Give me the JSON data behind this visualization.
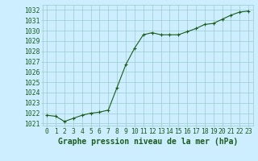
{
  "x": [
    0,
    1,
    2,
    3,
    4,
    5,
    6,
    7,
    8,
    9,
    10,
    11,
    12,
    13,
    14,
    15,
    16,
    17,
    18,
    19,
    20,
    21,
    22,
    23
  ],
  "y": [
    1021.8,
    1021.7,
    1021.2,
    1021.5,
    1021.8,
    1022.0,
    1022.1,
    1022.3,
    1024.5,
    1026.7,
    1028.3,
    1029.6,
    1029.8,
    1029.6,
    1029.6,
    1029.6,
    1029.9,
    1030.2,
    1030.6,
    1030.7,
    1031.1,
    1031.5,
    1031.8,
    1031.9
  ],
  "xlim": [
    -0.5,
    23.5
  ],
  "ylim": [
    1020.8,
    1032.5
  ],
  "yticks": [
    1021,
    1022,
    1023,
    1024,
    1025,
    1026,
    1027,
    1028,
    1029,
    1030,
    1031,
    1032
  ],
  "xticks": [
    0,
    1,
    2,
    3,
    4,
    5,
    6,
    7,
    8,
    9,
    10,
    11,
    12,
    13,
    14,
    15,
    16,
    17,
    18,
    19,
    20,
    21,
    22,
    23
  ],
  "xlabel": "Graphe pression niveau de la mer (hPa)",
  "line_color": "#1a5c1a",
  "marker": "+",
  "bg_color": "#cceeff",
  "grid_color": "#99cccc",
  "tick_label_color": "#1a5c1a",
  "xlabel_color": "#1a5c1a",
  "xlabel_fontsize": 7.0,
  "tick_fontsize": 5.8,
  "linewidth": 0.8,
  "markersize": 3.5,
  "markeredgewidth": 0.8
}
